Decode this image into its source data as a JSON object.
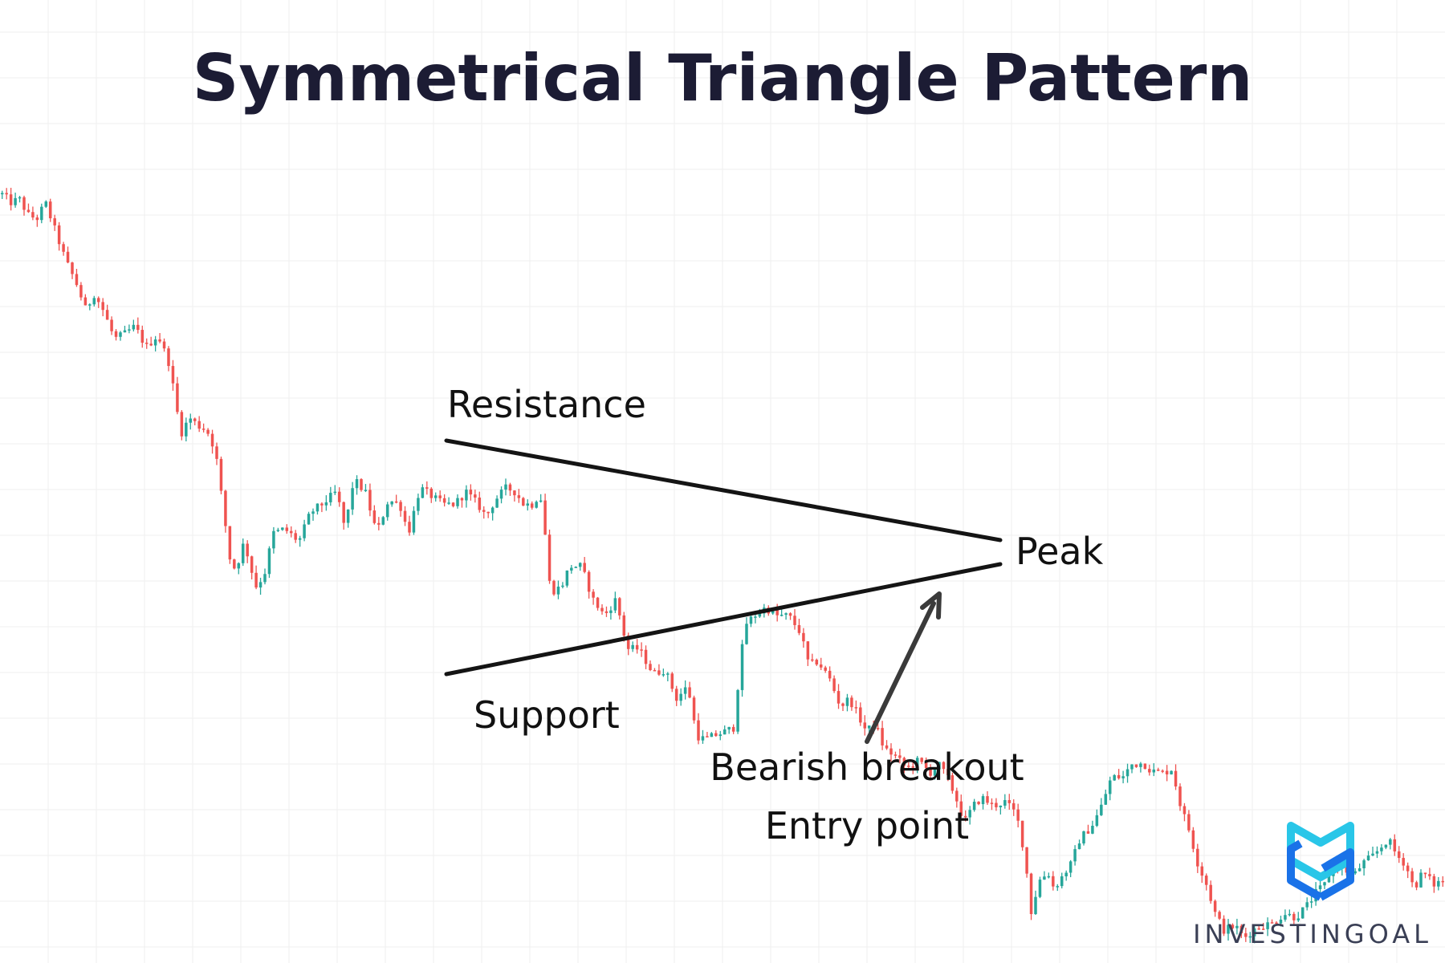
{
  "chart_data": {
    "type": "candlestick",
    "title": "Symmetrical Triangle Pattern",
    "xlabel": "",
    "ylabel": "",
    "grid": true,
    "legend": "none",
    "colors": {
      "up": "#26a69a",
      "down": "#ef5350",
      "lines": "#141414",
      "grid": "#efefef",
      "title": "#1c1c34"
    },
    "price_path": [
      [
        0,
        930
      ],
      [
        6,
        920
      ],
      [
        12,
        924
      ],
      [
        18,
        905
      ],
      [
        24,
        900
      ],
      [
        30,
        920
      ],
      [
        38,
        880
      ],
      [
        44,
        850
      ],
      [
        52,
        820
      ],
      [
        58,
        790
      ],
      [
        64,
        810
      ],
      [
        70,
        790
      ],
      [
        78,
        755
      ],
      [
        84,
        760
      ],
      [
        92,
        770
      ],
      [
        100,
        745
      ],
      [
        108,
        760
      ],
      [
        116,
        725
      ],
      [
        124,
        640
      ],
      [
        130,
        660
      ],
      [
        136,
        650
      ],
      [
        142,
        645
      ],
      [
        148,
        620
      ],
      [
        158,
        490
      ],
      [
        162,
        475
      ],
      [
        168,
        510
      ],
      [
        176,
        455
      ],
      [
        182,
        470
      ],
      [
        188,
        520
      ],
      [
        196,
        525
      ],
      [
        206,
        510
      ],
      [
        214,
        545
      ],
      [
        222,
        555
      ],
      [
        232,
        570
      ],
      [
        238,
        525
      ],
      [
        244,
        585
      ],
      [
        252,
        570
      ],
      [
        260,
        520
      ],
      [
        268,
        560
      ],
      [
        276,
        555
      ],
      [
        282,
        520
      ],
      [
        290,
        575
      ],
      [
        298,
        565
      ],
      [
        306,
        555
      ],
      [
        314,
        555
      ],
      [
        322,
        570
      ],
      [
        330,
        555
      ],
      [
        336,
        540
      ],
      [
        342,
        560
      ],
      [
        350,
        575
      ],
      [
        356,
        570
      ],
      [
        362,
        555
      ],
      [
        368,
        555
      ],
      [
        372,
        565
      ],
      [
        376,
        558
      ],
      [
        378,
        470
      ],
      [
        382,
        450
      ],
      [
        388,
        455
      ],
      [
        394,
        480
      ],
      [
        402,
        480
      ],
      [
        410,
        440
      ],
      [
        418,
        420
      ],
      [
        426,
        440
      ],
      [
        434,
        380
      ],
      [
        442,
        380
      ],
      [
        452,
        350
      ],
      [
        460,
        355
      ],
      [
        468,
        320
      ],
      [
        476,
        335
      ],
      [
        482,
        275
      ],
      [
        488,
        270
      ],
      [
        494,
        275
      ],
      [
        502,
        280
      ],
      [
        508,
        285
      ],
      [
        512,
        360
      ],
      [
        516,
        410
      ],
      [
        522,
        420
      ],
      [
        530,
        430
      ],
      [
        538,
        420
      ],
      [
        546,
        420
      ],
      [
        554,
        400
      ],
      [
        560,
        360
      ],
      [
        566,
        365
      ],
      [
        574,
        345
      ],
      [
        582,
        310
      ],
      [
        588,
        320
      ],
      [
        594,
        300
      ],
      [
        600,
        280
      ],
      [
        606,
        290
      ],
      [
        612,
        260
      ],
      [
        620,
        250
      ],
      [
        628,
        235
      ],
      [
        636,
        245
      ],
      [
        644,
        230
      ],
      [
        650,
        240
      ],
      [
        656,
        225
      ],
      [
        662,
        200
      ],
      [
        668,
        170
      ],
      [
        674,
        190
      ],
      [
        680,
        200
      ],
      [
        688,
        190
      ],
      [
        696,
        195
      ],
      [
        704,
        180
      ],
      [
        710,
        130
      ],
      [
        714,
        60
      ],
      [
        720,
        100
      ],
      [
        726,
        110
      ],
      [
        730,
        90
      ],
      [
        736,
        105
      ],
      [
        742,
        120
      ],
      [
        748,
        150
      ],
      [
        756,
        165
      ],
      [
        762,
        185
      ],
      [
        770,
        225
      ],
      [
        778,
        225
      ],
      [
        784,
        240
      ],
      [
        792,
        242
      ],
      [
        798,
        232
      ],
      [
        806,
        230
      ],
      [
        812,
        235
      ],
      [
        818,
        190
      ],
      [
        824,
        160
      ],
      [
        830,
        120
      ],
      [
        836,
        95
      ],
      [
        842,
        60
      ],
      [
        848,
        40
      ],
      [
        856,
        45
      ],
      [
        862,
        30
      ],
      [
        868,
        40
      ],
      [
        874,
        45
      ],
      [
        882,
        48
      ],
      [
        890,
        60
      ],
      [
        898,
        55
      ],
      [
        906,
        70
      ],
      [
        912,
        85
      ],
      [
        918,
        95
      ],
      [
        924,
        120
      ],
      [
        930,
        115
      ],
      [
        938,
        105
      ],
      [
        944,
        120
      ],
      [
        952,
        130
      ],
      [
        962,
        150
      ],
      [
        968,
        130
      ],
      [
        974,
        120
      ],
      [
        980,
        90
      ],
      [
        986,
        110
      ],
      [
        994,
        95
      ],
      [
        1000,
        100
      ]
    ]
  },
  "title": "Symmetrical Triangle Pattern",
  "annotations": {
    "resistance": "Resistance",
    "support": "Support",
    "peak": "Peak",
    "breakout": "Bearish breakout",
    "entry": "Entry point"
  },
  "brand": {
    "name": "INVESTINGOAL",
    "logo_colors": [
      "#29c6e8",
      "#1a72e8"
    ]
  }
}
